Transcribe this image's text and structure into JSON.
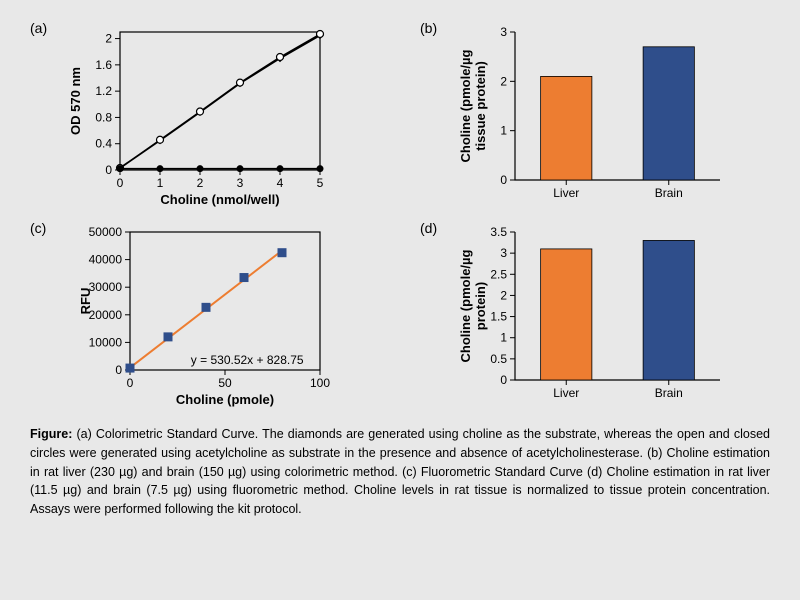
{
  "panels": {
    "a": {
      "label": "(a)",
      "type": "scatter-line",
      "xlabel": "Choline  (nmol/well)",
      "ylabel": "OD 570 nm",
      "xlim": [
        0,
        5
      ],
      "ylim": [
        0,
        2.1
      ],
      "xticks": [
        0,
        1,
        2,
        3,
        4,
        5
      ],
      "yticks": [
        0,
        0.4,
        0.8,
        1.2,
        1.6,
        2
      ],
      "axis_color": "#000000",
      "background_color": "#e8e8e8",
      "label_fontsize": 13,
      "tick_fontsize": 12,
      "series": [
        {
          "type": "line-markers",
          "marker": "diamond",
          "x": [
            0,
            1,
            2,
            3,
            4,
            5
          ],
          "y": [
            0.03,
            0.45,
            0.88,
            1.32,
            1.7,
            2.05
          ],
          "line_color": "#000000",
          "marker_fill": "#000000",
          "marker_size": 8,
          "line_width": 1.8
        },
        {
          "type": "line-markers",
          "marker": "circle-open",
          "x": [
            0,
            1,
            2,
            3,
            4,
            5
          ],
          "y": [
            0.03,
            0.46,
            0.89,
            1.33,
            1.72,
            2.07
          ],
          "line_color": "#000000",
          "marker_fill": "#ffffff",
          "marker_stroke": "#000000",
          "marker_size": 7,
          "line_width": 1.2
        },
        {
          "type": "line-markers",
          "marker": "circle",
          "x": [
            0,
            1,
            2,
            3,
            4,
            5
          ],
          "y": [
            0.02,
            0.02,
            0.02,
            0.02,
            0.02,
            0.02
          ],
          "line_color": "#000000",
          "marker_fill": "#000000",
          "marker_size": 7,
          "line_width": 1.5
        }
      ]
    },
    "b": {
      "label": "(b)",
      "type": "bar",
      "xlabel": "",
      "ylabel": "Choline (pmole/µg\ntissue protein)",
      "categories": [
        "Liver",
        "Brain"
      ],
      "values": [
        2.1,
        2.7
      ],
      "ylim": [
        0,
        3
      ],
      "yticks": [
        0,
        1,
        2,
        3
      ],
      "bar_colors": [
        "#ed7d31",
        "#2f4e8b"
      ],
      "bar_stroke": "#000000",
      "bar_width": 0.5,
      "axis_color": "#000000",
      "background_color": "#e8e8e8",
      "label_fontsize": 13,
      "tick_fontsize": 12
    },
    "c": {
      "label": "(c)",
      "type": "scatter-line",
      "xlabel": "Choline (pmole)",
      "ylabel": "RFU",
      "xlim": [
        0,
        100
      ],
      "ylim": [
        0,
        50000
      ],
      "xticks": [
        0,
        50,
        100
      ],
      "yticks": [
        0,
        10000,
        20000,
        30000,
        40000,
        50000
      ],
      "axis_color": "#000000",
      "background_color": "#e8e8e8",
      "label_fontsize": 13,
      "tick_fontsize": 12,
      "equation": "y = 530.52x + 828.75",
      "series": [
        {
          "type": "line",
          "x": [
            0,
            80
          ],
          "y": [
            828.75,
            43270
          ],
          "line_color": "#ed7d31",
          "line_width": 2
        },
        {
          "type": "markers",
          "marker": "square",
          "x": [
            0,
            20,
            40,
            60,
            80
          ],
          "y": [
            700,
            12000,
            22700,
            33500,
            42500
          ],
          "marker_fill": "#2f4e8b",
          "marker_size": 9
        }
      ]
    },
    "d": {
      "label": "(d)",
      "type": "bar",
      "xlabel": "",
      "ylabel": "Choline (pmole/µg\nprotein)",
      "categories": [
        "Liver",
        "Brain"
      ],
      "values": [
        3.1,
        3.3
      ],
      "ylim": [
        0,
        3.5
      ],
      "yticks": [
        0,
        0.5,
        1,
        1.5,
        2,
        2.5,
        3,
        3.5
      ],
      "bar_colors": [
        "#ed7d31",
        "#2f4e8b"
      ],
      "bar_stroke": "#000000",
      "bar_width": 0.5,
      "axis_color": "#000000",
      "background_color": "#e8e8e8",
      "label_fontsize": 13,
      "tick_fontsize": 12
    }
  },
  "caption_label": "Figure:",
  "caption_text": " (a) Colorimetric Standard Curve. The diamonds are generated using choline as the substrate, whereas the open and closed circles were generated using acetylcholine as substrate in the presence and absence of acetylcholinesterase. (b) Choline estimation in rat liver (230 µg) and brain (150 µg) using colorimetric method. (c) Fluorometric Standard Curve (d) Choline estimation in rat liver (11.5 µg) and brain (7.5 µg) using fluorometric method. Choline levels in rat tissue is normalized to tissue protein concentration. Assays were performed following the kit protocol."
}
